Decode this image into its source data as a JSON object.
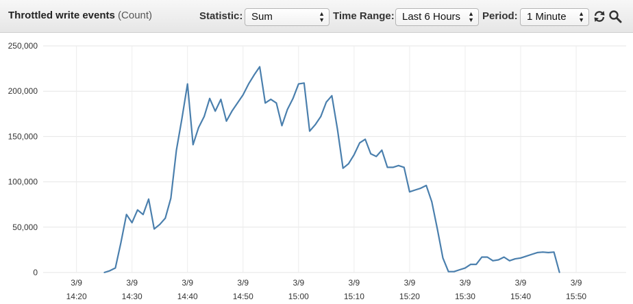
{
  "toolbar": {
    "title": "Throttled write events",
    "unit": "(Count)",
    "statistic_label": "Statistic:",
    "statistic_value": "Sum",
    "time_range_label": "Time Range:",
    "time_range_value": "Last 6 Hours",
    "period_label": "Period:",
    "period_value": "1 Minute",
    "refresh_icon": "refresh-icon",
    "zoom_icon": "magnifier-icon"
  },
  "chart_data": {
    "type": "line",
    "title": "",
    "xlabel": "",
    "ylabel": "",
    "color": "#4a7fad",
    "grid": true,
    "ylim": [
      0,
      250000
    ],
    "y_ticks": [
      0,
      50000,
      100000,
      150000,
      200000,
      250000
    ],
    "y_tick_labels": [
      "0",
      "50,000",
      "100,000",
      "150,000",
      "200,000",
      "250,000"
    ],
    "x_ticks": [
      "14:20",
      "14:30",
      "14:40",
      "14:50",
      "15:00",
      "15:10",
      "15:20",
      "15:30",
      "15:40",
      "15:50"
    ],
    "x_tick_labels": [
      {
        "date": "3/9",
        "time": "14:20"
      },
      {
        "date": "3/9",
        "time": "14:30"
      },
      {
        "date": "3/9",
        "time": "14:40"
      },
      {
        "date": "3/9",
        "time": "14:50"
      },
      {
        "date": "3/9",
        "time": "15:00"
      },
      {
        "date": "3/9",
        "time": "15:10"
      },
      {
        "date": "3/9",
        "time": "15:20"
      },
      {
        "date": "3/9",
        "time": "15:30"
      },
      {
        "date": "3/9",
        "time": "15:40"
      },
      {
        "date": "3/9",
        "time": "15:50"
      }
    ],
    "xlim": [
      "14:14",
      "15:59"
    ],
    "series": [
      {
        "x": [
          "14:25",
          "14:26",
          "14:27",
          "14:28",
          "14:29",
          "14:30",
          "14:31",
          "14:32",
          "14:33",
          "14:34",
          "14:35",
          "14:36",
          "14:37",
          "14:38",
          "14:39",
          "14:40",
          "14:41",
          "14:42",
          "14:43",
          "14:44",
          "14:45",
          "14:46",
          "14:47",
          "14:48",
          "14:49",
          "14:50",
          "14:51",
          "14:52",
          "14:53",
          "14:54",
          "14:55",
          "14:56",
          "14:57",
          "14:58",
          "14:59",
          "15:00",
          "15:01",
          "15:02",
          "15:03",
          "15:04",
          "15:05",
          "15:06",
          "15:07",
          "15:08",
          "15:09",
          "15:10",
          "15:11",
          "15:12",
          "15:13",
          "15:14",
          "15:15",
          "15:16",
          "15:17",
          "15:18",
          "15:19",
          "15:20",
          "15:21",
          "15:22",
          "15:23",
          "15:24",
          "15:25",
          "15:26",
          "15:27",
          "15:28",
          "15:29",
          "15:30",
          "15:31",
          "15:32",
          "15:33",
          "15:34",
          "15:35",
          "15:36",
          "15:37",
          "15:38",
          "15:39",
          "15:40",
          "15:41",
          "15:42",
          "15:43",
          "15:44",
          "15:45",
          "15:46",
          "15:47"
        ],
        "values": [
          0,
          2000,
          5000,
          33000,
          64000,
          55000,
          69000,
          64000,
          81000,
          48000,
          53000,
          60000,
          82000,
          135000,
          170000,
          208000,
          141000,
          160000,
          172000,
          192000,
          178000,
          191000,
          167000,
          178000,
          187000,
          196000,
          208000,
          218000,
          227000,
          187000,
          191000,
          187000,
          162000,
          180000,
          192000,
          208000,
          209000,
          156000,
          163000,
          172000,
          188000,
          195000,
          158000,
          115000,
          120000,
          130000,
          143000,
          147000,
          131000,
          128000,
          135000,
          116000,
          116000,
          118000,
          116000,
          89000,
          91000,
          93000,
          96000,
          78000,
          48000,
          16000,
          1000,
          1000,
          3000,
          5000,
          9000,
          9000,
          17000,
          17000,
          13000,
          14000,
          17000,
          13000,
          15000,
          16000,
          18000,
          20000,
          22000,
          22500,
          22000,
          22500,
          0
        ]
      }
    ]
  }
}
